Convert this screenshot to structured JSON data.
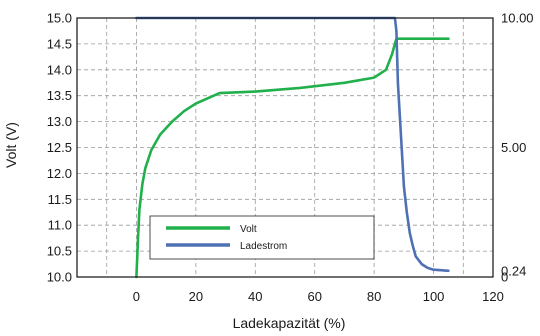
{
  "chart_data": {
    "type": "line",
    "xlabel": "Ladekapazität (%)",
    "ylabel": "Volt (V)",
    "xlim": [
      -20,
      120
    ],
    "ylim_left": [
      10.0,
      15.0
    ],
    "ylim_right_current": [
      0,
      10.0
    ],
    "grid": true,
    "legend_position": "bottom-center",
    "x_ticks": [
      0,
      20,
      40,
      60,
      80,
      100,
      120
    ],
    "x_tick_labels": [
      "0",
      "20",
      "40",
      "60",
      "80",
      "100",
      "120"
    ],
    "y_left_ticks": [
      10.0,
      10.5,
      11.0,
      11.5,
      12.0,
      12.5,
      13.0,
      13.5,
      14.0,
      14.5,
      15.0
    ],
    "y_left_tick_labels": [
      "10.0",
      "10.5",
      "11.0",
      "11.5",
      "12.0",
      "12.5",
      "13.0",
      "13.5",
      "14.0",
      "14.5",
      "15.0"
    ],
    "y_right_ticks": [
      0,
      0.24,
      5.0,
      10.0
    ],
    "y_right_tick_labels": [
      "0",
      "0.24",
      "5.00",
      "10.00"
    ],
    "series": [
      {
        "name": "Volt",
        "color": "#21b04b",
        "axis": "left",
        "x": [
          0,
          0.5,
          1,
          2,
          3,
          5,
          8,
          12,
          16,
          20,
          24,
          28,
          40,
          55,
          70,
          80,
          84,
          86,
          87,
          87.5,
          88,
          90,
          95,
          100,
          105
        ],
        "y": [
          10.0,
          10.7,
          11.3,
          11.8,
          12.1,
          12.45,
          12.75,
          13.0,
          13.2,
          13.35,
          13.45,
          13.55,
          13.58,
          13.65,
          13.75,
          13.85,
          14.0,
          14.3,
          14.5,
          14.6,
          14.6,
          14.6,
          14.6,
          14.6,
          14.6
        ]
      },
      {
        "name": "Ladestrom",
        "color": "#4f71b3",
        "axis": "right",
        "x": [
          0,
          20,
          40,
          60,
          80,
          85,
          87,
          87.5,
          88,
          89,
          89.5,
          90,
          91,
          92,
          93,
          94,
          96,
          98,
          100,
          103,
          105
        ],
        "y": [
          10.0,
          10.0,
          10.0,
          10.0,
          10.0,
          10.0,
          10.0,
          9.5,
          7.5,
          5.5,
          4.5,
          3.5,
          2.5,
          1.7,
          1.2,
          0.8,
          0.5,
          0.35,
          0.28,
          0.26,
          0.24
        ]
      }
    ]
  }
}
